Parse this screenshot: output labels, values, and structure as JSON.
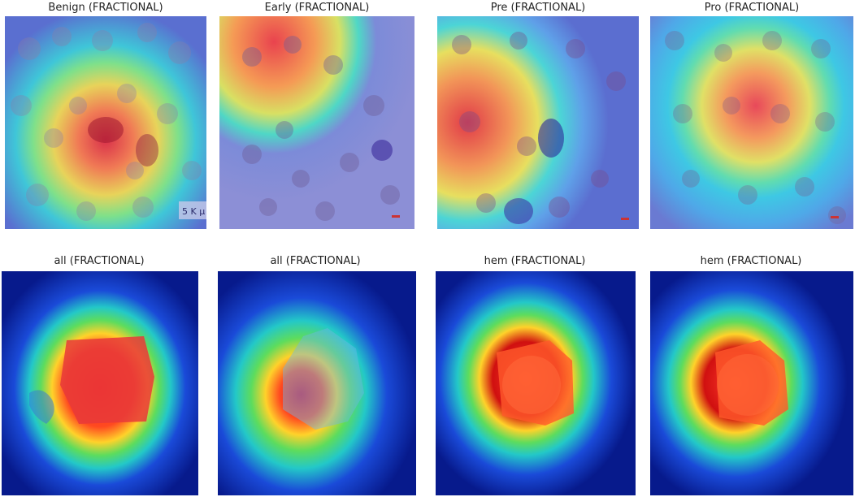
{
  "panels": [
    {
      "title": "Benign (FRACTIONAL)",
      "kind": "cam-cells"
    },
    {
      "title": "Early (FRACTIONAL)",
      "kind": "cam-cells"
    },
    {
      "title": "Pre (FRACTIONAL)",
      "kind": "cam-cells"
    },
    {
      "title": "Pro (FRACTIONAL)",
      "kind": "cam-cells"
    },
    {
      "title": "all (FRACTIONAL)",
      "kind": "cam-segmented"
    },
    {
      "title": "all (FRACTIONAL)",
      "kind": "cam-segmented"
    },
    {
      "title": "hem (FRACTIONAL)",
      "kind": "cam-segmented"
    },
    {
      "title": "hem (FRACTIONAL)",
      "kind": "cam-segmented"
    }
  ],
  "scale_labels": {
    "benign": "5 K µ",
    "tiny": "▪▪"
  }
}
